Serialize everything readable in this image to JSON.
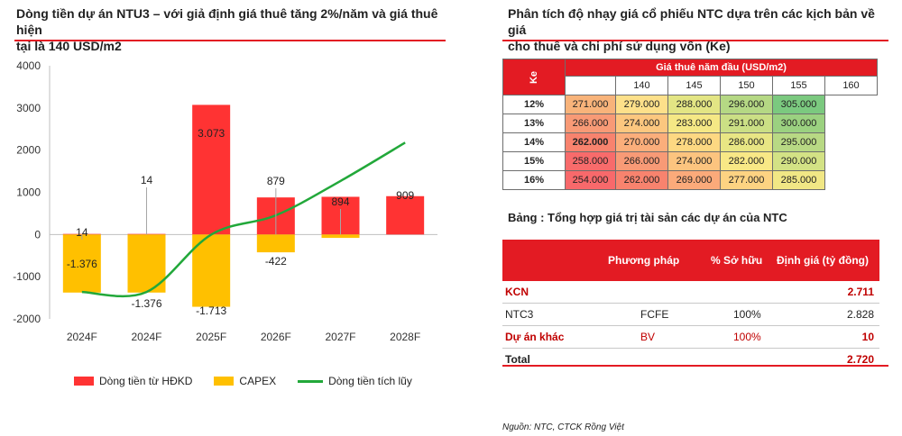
{
  "left": {
    "title_line1": "Dòng tiền dự án NTU3 – với giả định giá thuê tăng 2%/năm và giá thuê hiện",
    "title_line2": "tại là 140 USD/m2"
  },
  "chart_data": {
    "type": "bar",
    "categories": [
      "2024F",
      "2024F",
      "2025F",
      "2026F",
      "2027F",
      "2028F"
    ],
    "series": [
      {
        "name": "Dòng tiền từ HĐKD",
        "values": [
          14,
          14,
          3073,
          879,
          894,
          909
        ],
        "color": "#ff3333"
      },
      {
        "name": "CAPEX",
        "values": [
          -1376,
          -1376,
          -1713,
          -422,
          -80,
          0
        ],
        "color": "#ffc000"
      },
      {
        "name": "Dòng tiền tích lũy",
        "type": "line",
        "values": [
          -1362,
          -1362,
          -2,
          455,
          1269,
          2178
        ],
        "color": "#22a83a"
      }
    ],
    "data_labels": {
      "positive": [
        "14",
        "14",
        "3.073",
        "879",
        "894",
        "909"
      ],
      "negative": [
        "-1.376",
        "-1.376",
        "-1.713",
        "-422",
        "",
        ""
      ]
    },
    "yticks": [
      "4000",
      "3000",
      "2000",
      "1000",
      "0",
      "-1000",
      "-2000"
    ],
    "ylim": [
      -2000,
      4000
    ],
    "legend_position": "bottom",
    "grid": false
  },
  "sensitivity": {
    "title_line1": "Phân tích độ nhạy giá cổ phiếu NTC dựa trên các kịch bản về giá",
    "title_line2": "cho thuê và chi phí sử dụng vốn (Ke)",
    "col_header": "Giá thuê năm đầu (USD/m2)",
    "row_header": "Ke",
    "cols": [
      "140",
      "145",
      "150",
      "155",
      "160"
    ],
    "rows": [
      {
        "label": "12%",
        "values": [
          "271.000",
          "279.000",
          "288.000",
          "296.000",
          "305.000"
        ]
      },
      {
        "label": "13%",
        "values": [
          "266.000",
          "274.000",
          "283.000",
          "291.000",
          "300.000"
        ]
      },
      {
        "label": "14%",
        "values": [
          "262.000",
          "270.000",
          "278.000",
          "286.000",
          "295.000"
        ]
      },
      {
        "label": "15%",
        "values": [
          "258.000",
          "266.000",
          "274.000",
          "282.000",
          "290.000"
        ]
      },
      {
        "label": "16%",
        "values": [
          "254.000",
          "262.000",
          "269.000",
          "277.000",
          "285.000"
        ]
      }
    ],
    "heat_colors": [
      [
        "#f8b37a",
        "#fde08a",
        "#e3e584",
        "#b5d884",
        "#7bc97f"
      ],
      [
        "#f89a76",
        "#fcc77f",
        "#f5e885",
        "#cbdf85",
        "#9bd180"
      ],
      [
        "#f8836e",
        "#fbae7b",
        "#fdd882",
        "#e8e684",
        "#b8d984"
      ],
      [
        "#f86b6b",
        "#f89a76",
        "#fcc47f",
        "#f8e886",
        "#d3e285"
      ],
      [
        "#f8696b",
        "#f8836e",
        "#fbaa7a",
        "#fdd382",
        "#f1e785"
      ]
    ]
  },
  "assets": {
    "title": "Bảng : Tổng hợp giá trị tài sản các dự án của NTC",
    "headers": [
      "Phương pháp",
      "% Sở hữu",
      "Định giá (tỷ đồng)"
    ],
    "rows": [
      {
        "name": "KCN",
        "method": "",
        "own": "",
        "value": "2.711"
      },
      {
        "name": "NTC3",
        "method": "FCFE",
        "own": "100%",
        "value": "2.828"
      },
      {
        "name": "Dự án khác",
        "method": "BV",
        "own": "100%",
        "value": "10"
      },
      {
        "name": "Total",
        "method": "",
        "own": "",
        "value": "2.720"
      }
    ],
    "source": "Nguồn: NTC, CTCK Rồng Việt"
  }
}
